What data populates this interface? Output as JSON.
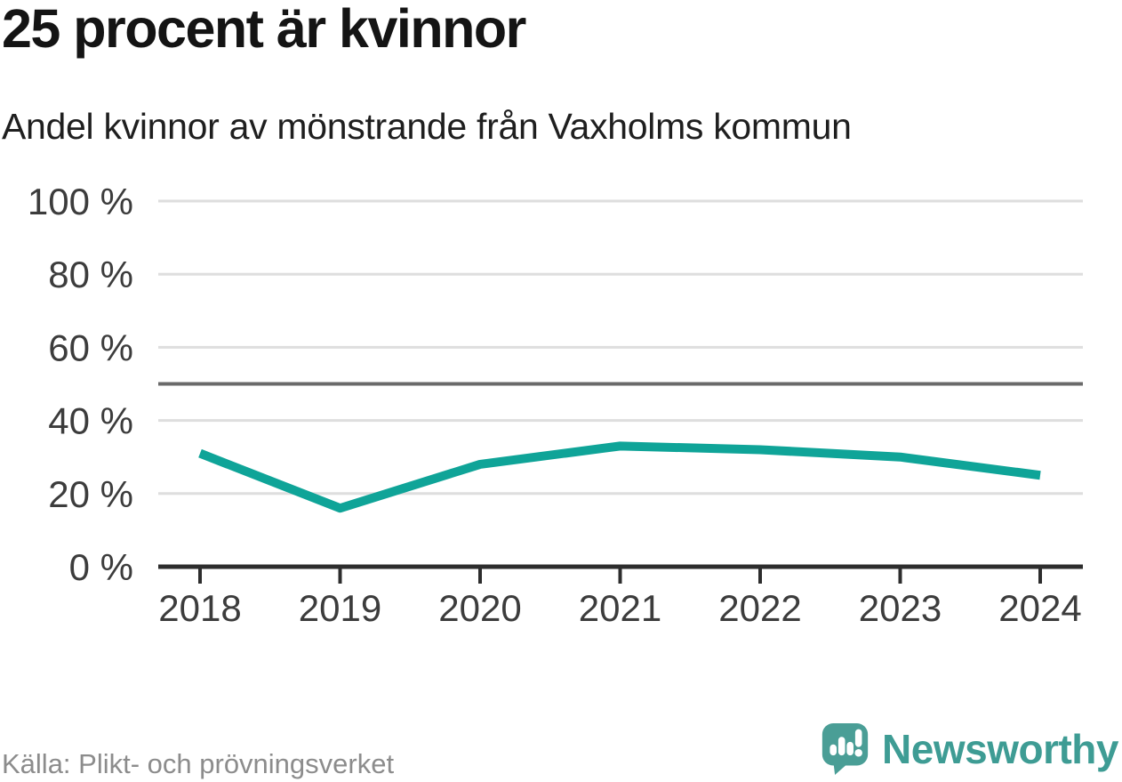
{
  "header": {
    "title": "25 procent är kvinnor",
    "subtitle": "Andel kvinnor av mönstrande från Vaxholms kommun"
  },
  "chart_data": {
    "type": "line",
    "title": "25 procent är kvinnor",
    "subtitle": "Andel kvinnor av mönstrande från Vaxholms kommun",
    "categories": [
      "2018",
      "2019",
      "2020",
      "2021",
      "2022",
      "2023",
      "2024"
    ],
    "series": [
      {
        "name": "Andel kvinnor av mönstrande",
        "values": [
          31,
          16,
          28,
          33,
          32,
          30,
          25
        ]
      }
    ],
    "unit": "%",
    "xlabel": "",
    "ylabel": "",
    "ylim": [
      0,
      100
    ],
    "yticks": [
      0,
      20,
      40,
      60,
      80,
      100
    ],
    "ytick_labels": [
      "0 %",
      "20 %",
      "40 %",
      "60 %",
      "80 %",
      "100 %"
    ],
    "reference_line": 50,
    "grid": true,
    "legend": "none"
  },
  "footer": {
    "source": "Källa: Plikt- och prövningsverket",
    "brand": "Newsworthy"
  },
  "colors": {
    "line": "#0fa498",
    "grid": "#dedede",
    "reference": "#6a6a6a",
    "axis": "#2d2d2d",
    "title": "#141414",
    "subtitle": "#1f1f1f",
    "tick_text": "#3c3c3c",
    "source_text": "#8c8c8c",
    "logo_mark": "#4a9e96",
    "logo_text": "#3e9c94"
  },
  "icons": {
    "logo_mark": "newsworthy-speech-bubble-bar-chart-icon"
  }
}
